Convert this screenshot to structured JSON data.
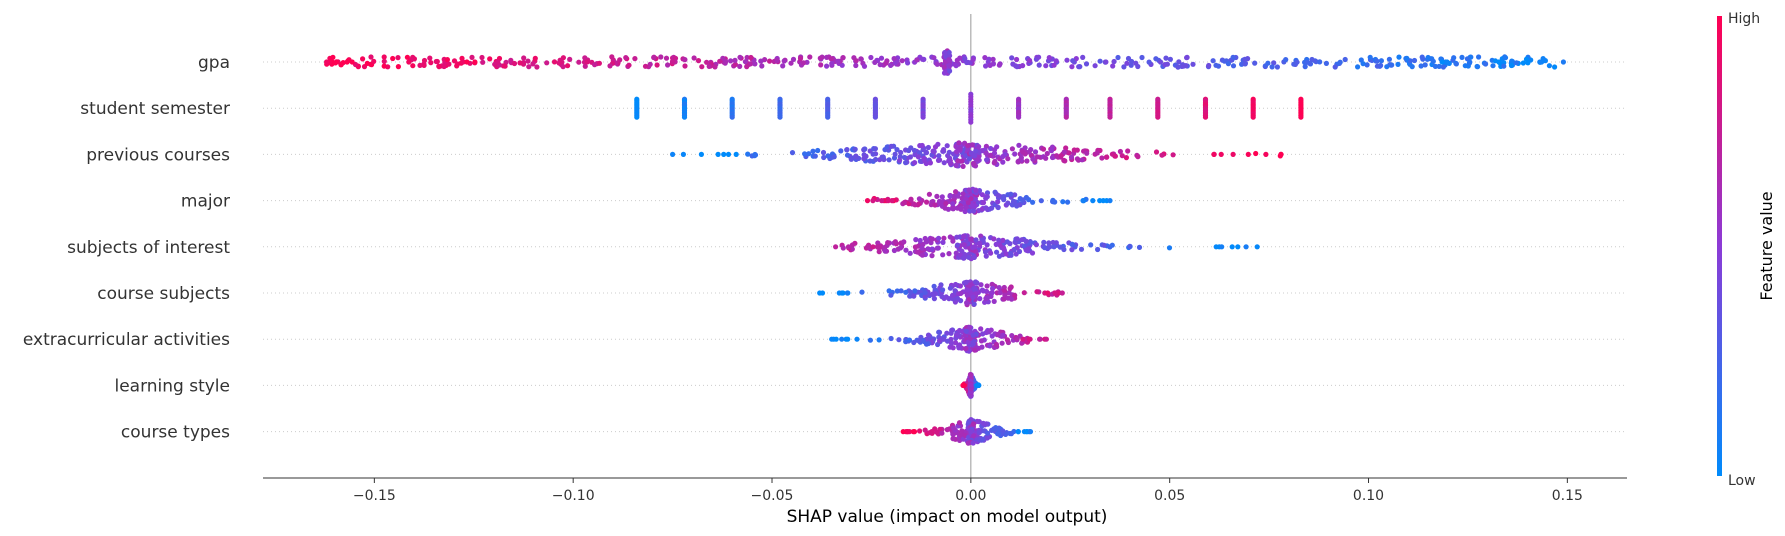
{
  "chart_data": {
    "type": "scatter",
    "subtype": "shap-beeswarm",
    "title": "",
    "xlabel": "SHAP value (impact on model output)",
    "xlim": [
      -0.178,
      0.165
    ],
    "x_ticks": [
      {
        "value": -0.15,
        "label": "−0.15"
      },
      {
        "value": -0.1,
        "label": "−0.10"
      },
      {
        "value": -0.05,
        "label": "−0.05"
      },
      {
        "value": 0.0,
        "label": "0.00"
      },
      {
        "value": 0.05,
        "label": "0.05"
      },
      {
        "value": 0.1,
        "label": "0.10"
      },
      {
        "value": 0.15,
        "label": "0.15"
      }
    ],
    "features": [
      {
        "name": "gpa",
        "min": -0.162,
        "max": 0.149,
        "low_color_side": "positive",
        "center": -0.006
      },
      {
        "name": "student semester",
        "discrete_x": [
          -0.084,
          -0.072,
          -0.06,
          -0.048,
          -0.036,
          -0.024,
          -0.012,
          0.0,
          0.012,
          0.024,
          0.035,
          0.047,
          0.059,
          0.071,
          0.083
        ],
        "low_color_side": "negative"
      },
      {
        "name": "previous courses",
        "min": -0.075,
        "max": 0.078,
        "low_color_side": "negative",
        "center": -0.001
      },
      {
        "name": "major",
        "min": -0.026,
        "max": 0.035,
        "low_color_side": "positive",
        "center": 0.0
      },
      {
        "name": "subjects of interest",
        "min": -0.034,
        "max": 0.072,
        "low_color_side": "positive",
        "center": -0.001
      },
      {
        "name": "course subjects",
        "min": -0.038,
        "max": 0.023,
        "low_color_side": "negative",
        "center": 0.0
      },
      {
        "name": "extracurricular activities",
        "min": -0.035,
        "max": 0.019,
        "low_color_side": "negative",
        "center": 0.0
      },
      {
        "name": "learning style",
        "min": -0.002,
        "max": 0.002,
        "low_color_side": "positive",
        "center": 0.0
      },
      {
        "name": "course types",
        "min": -0.017,
        "max": 0.015,
        "low_color_side": "positive",
        "center": 0.0
      }
    ],
    "colorbar": {
      "label": "Feature value",
      "high_label": "High",
      "low_label": "Low",
      "high_color": "#ff0052",
      "low_color": "#008bfb",
      "mid_color": "#8c3bd6"
    },
    "zero_line": 0.0,
    "grid": "dotted horizontal row lines"
  }
}
